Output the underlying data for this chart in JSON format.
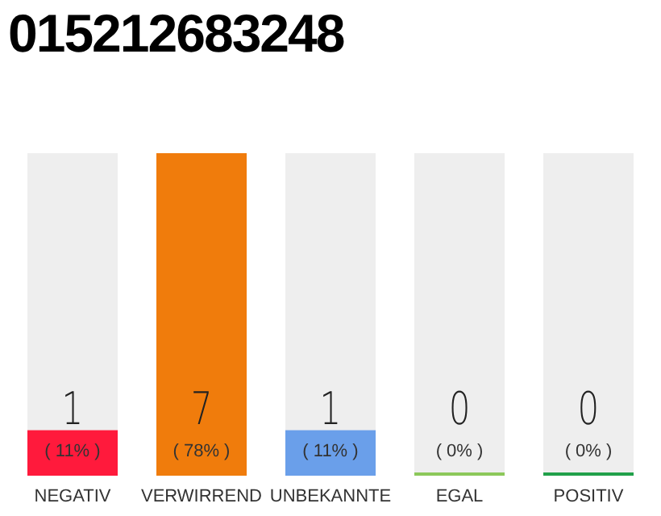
{
  "chart_data": {
    "type": "bar",
    "title": "015212683248",
    "categories": [
      "NEGATIV",
      "VERWIRREND",
      "UNBEKANNTE",
      "EGAL",
      "POSITIV"
    ],
    "values": [
      11,
      78,
      11,
      0,
      0
    ],
    "colors": [
      "#ff1a3c",
      "#f07c0c",
      "#6a9fea",
      "#8cc85a",
      "#21a04a"
    ],
    "value_labels": [
      "( 11% )",
      "( 78% )",
      "( 11% )",
      "( 0% )",
      "( 0% )"
    ],
    "annotations": [
      "1",
      "7",
      "1",
      "0",
      "0"
    ]
  }
}
